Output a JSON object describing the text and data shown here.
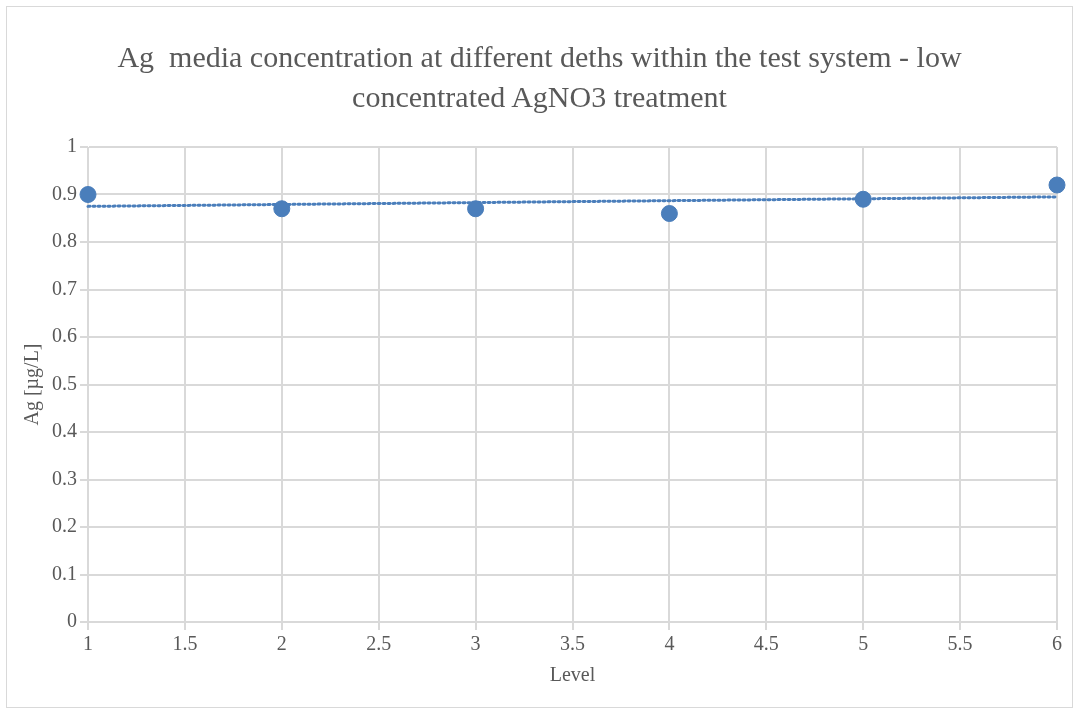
{
  "chart_data": {
    "type": "scatter",
    "title": "Ag  media concentration at different deths within the test system - low concentrated AgNO3 treatment",
    "xlabel": "Level",
    "ylabel": "Ag [µg/L]",
    "x": [
      1,
      2,
      3,
      4,
      5,
      6
    ],
    "series": [
      {
        "type": "scatter",
        "color": "#4a7ebb",
        "marker": "circle",
        "values": [
          0.9,
          0.87,
          0.87,
          0.86,
          0.89,
          0.92
        ]
      },
      {
        "type": "line",
        "color": "#4a7ebb",
        "marker": "none",
        "line_style": "dotted",
        "x": [
          1,
          6
        ],
        "values": [
          0.875,
          0.895
        ]
      }
    ],
    "xlim": [
      1,
      6
    ],
    "xticks": [
      1,
      1.5,
      2,
      2.5,
      3,
      3.5,
      4,
      4.5,
      5,
      5.5,
      6
    ],
    "ylim": [
      0,
      1
    ],
    "yticks": [
      0,
      0.1,
      0.2,
      0.3,
      0.4,
      0.5,
      0.6,
      0.7,
      0.8,
      0.9,
      1
    ],
    "grid": true,
    "legend": false
  }
}
